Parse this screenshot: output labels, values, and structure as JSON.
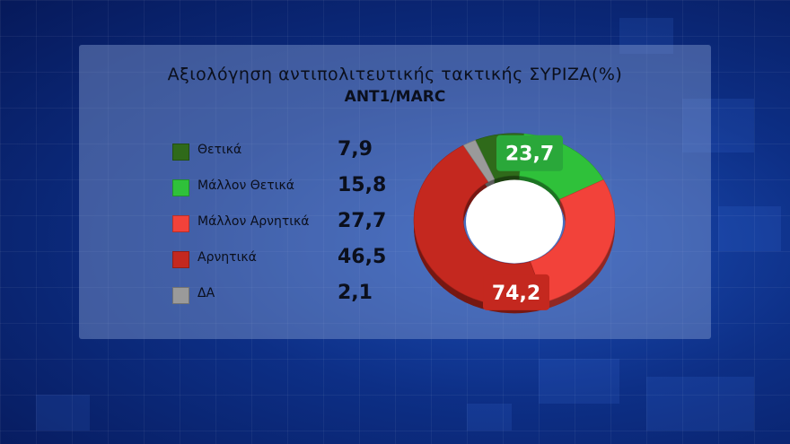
{
  "chart_data": {
    "type": "pie",
    "title": "Αξιολόγηση αντιπολιτευτικής τακτικής ΣΥΡΙΖΑ(%)",
    "subtitle": "ANT1/MARC",
    "legend_position": "left",
    "slices": [
      {
        "name": "Θετικά",
        "value": 7.9,
        "color": "#2f6a1a"
      },
      {
        "name": "Μάλλον Θετικά",
        "value": 15.8,
        "color": "#2fc13a"
      },
      {
        "name": "Μάλλον Αρνητικά",
        "value": 27.7,
        "color": "#f2423a"
      },
      {
        "name": "Αρνητικά",
        "value": 46.5,
        "color": "#c4281f"
      },
      {
        "name": "ΔΑ",
        "value": 2.1,
        "color": "#9a9a9a"
      }
    ],
    "value_labels": [
      "7,9",
      "15,8",
      "27,7",
      "46,5",
      "2,1"
    ],
    "group_labels": [
      {
        "text": "23,7",
        "color": "#2aa83a"
      },
      {
        "text": "74,2",
        "color": "#c4281f"
      }
    ]
  }
}
